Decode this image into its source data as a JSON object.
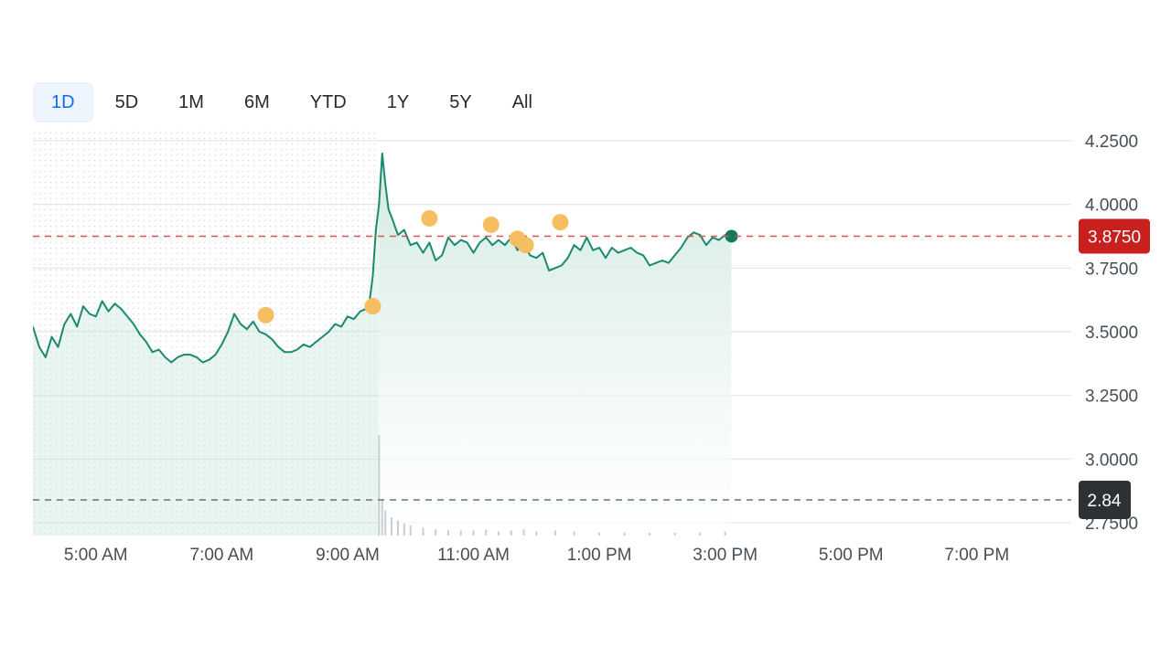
{
  "tabs": [
    {
      "label": "1D",
      "active": true
    },
    {
      "label": "5D",
      "active": false
    },
    {
      "label": "1M",
      "active": false
    },
    {
      "label": "6M",
      "active": false
    },
    {
      "label": "YTD",
      "active": false
    },
    {
      "label": "1Y",
      "active": false
    },
    {
      "label": "5Y",
      "active": false
    },
    {
      "label": "All",
      "active": false
    }
  ],
  "colors": {
    "line": "#1a8a6e",
    "area": "#dcefe9",
    "current_badge": "#c8201e",
    "prev_close_badge": "#2c3134",
    "event_marker": "#f5bf61",
    "grid": "#e2e4e6",
    "dotted_premarket": "#eceef0"
  },
  "chart_data": {
    "type": "line",
    "ylim": [
      2.7,
      4.3
    ],
    "yticks": [
      {
        "value": 2.75,
        "label": "2.7500"
      },
      {
        "value": 3.0,
        "label": "3.0000"
      },
      {
        "value": 3.25,
        "label": "3.2500"
      },
      {
        "value": 3.5,
        "label": "3.5000"
      },
      {
        "value": 3.75,
        "label": "3.7500"
      },
      {
        "value": 4.0,
        "label": "4.0000"
      },
      {
        "value": 4.25,
        "label": "4.2500"
      }
    ],
    "x_range_hours": [
      4,
      20.5
    ],
    "xticks": [
      {
        "value": 5,
        "label": "5:00 AM"
      },
      {
        "value": 7,
        "label": "7:00 AM"
      },
      {
        "value": 9,
        "label": "9:00 AM"
      },
      {
        "value": 11,
        "label": "11:00 AM"
      },
      {
        "value": 13,
        "label": "1:00 PM"
      },
      {
        "value": 15,
        "label": "3:00 PM"
      },
      {
        "value": 17,
        "label": "5:00 PM"
      },
      {
        "value": 19,
        "label": "7:00 PM"
      }
    ],
    "premarket_end_hour": 9.5,
    "current_price": {
      "value": 3.875,
      "label": "3.8750"
    },
    "previous_close": {
      "value": 2.84,
      "label": "2.84"
    },
    "series": [
      {
        "x": [
          4.0,
          4.1,
          4.2,
          4.3,
          4.4,
          4.5,
          4.6,
          4.7,
          4.8,
          4.9,
          5.0,
          5.1,
          5.2,
          5.3,
          5.4,
          5.5,
          5.6,
          5.7,
          5.8,
          5.9,
          6.0,
          6.1,
          6.2,
          6.3,
          6.4,
          6.5,
          6.6,
          6.7,
          6.8,
          6.9,
          7.0,
          7.1,
          7.2,
          7.3,
          7.4,
          7.5,
          7.6,
          7.7,
          7.8,
          7.9,
          8.0,
          8.1,
          8.2,
          8.3,
          8.4,
          8.5,
          8.6,
          8.7,
          8.8,
          8.9,
          9.0,
          9.1,
          9.2,
          9.3,
          9.35,
          9.4,
          9.45,
          9.5,
          9.55,
          9.6,
          9.65,
          9.7,
          9.8,
          9.9,
          10.0,
          10.1,
          10.2,
          10.3,
          10.4,
          10.5,
          10.6,
          10.7,
          10.8,
          10.9,
          11.0,
          11.1,
          11.2,
          11.3,
          11.4,
          11.5,
          11.6,
          11.7,
          11.8,
          11.9,
          12.0,
          12.1,
          12.2,
          12.3,
          12.4,
          12.5,
          12.6,
          12.7,
          12.8,
          12.9,
          13.0,
          13.1,
          13.2,
          13.3,
          13.4,
          13.5,
          13.6,
          13.7,
          13.8,
          13.9,
          14.0,
          14.1,
          14.2,
          14.3,
          14.4,
          14.5,
          14.6,
          14.7,
          14.8,
          14.9,
          15.0,
          15.1
        ],
        "y": [
          3.52,
          3.44,
          3.4,
          3.48,
          3.44,
          3.53,
          3.57,
          3.52,
          3.6,
          3.57,
          3.56,
          3.62,
          3.58,
          3.61,
          3.59,
          3.56,
          3.53,
          3.49,
          3.46,
          3.42,
          3.43,
          3.4,
          3.38,
          3.4,
          3.41,
          3.41,
          3.4,
          3.38,
          3.39,
          3.41,
          3.45,
          3.5,
          3.57,
          3.53,
          3.51,
          3.54,
          3.5,
          3.49,
          3.47,
          3.44,
          3.42,
          3.42,
          3.43,
          3.45,
          3.44,
          3.46,
          3.48,
          3.5,
          3.53,
          3.52,
          3.56,
          3.55,
          3.58,
          3.59,
          3.62,
          3.72,
          3.9,
          4.0,
          4.2,
          4.08,
          3.98,
          3.95,
          3.88,
          3.9,
          3.84,
          3.85,
          3.81,
          3.85,
          3.78,
          3.8,
          3.87,
          3.84,
          3.86,
          3.85,
          3.81,
          3.85,
          3.87,
          3.84,
          3.86,
          3.84,
          3.87,
          3.82,
          3.85,
          3.8,
          3.79,
          3.81,
          3.74,
          3.75,
          3.76,
          3.79,
          3.84,
          3.82,
          3.87,
          3.82,
          3.83,
          3.79,
          3.83,
          3.81,
          3.82,
          3.83,
          3.81,
          3.8,
          3.76,
          3.77,
          3.78,
          3.77,
          3.8,
          3.83,
          3.87,
          3.89,
          3.88,
          3.84,
          3.87,
          3.86,
          3.88,
          3.875
        ]
      }
    ],
    "events": [
      {
        "x": 7.7,
        "y": 3.565
      },
      {
        "x": 9.4,
        "y": 3.6
      },
      {
        "x": 10.3,
        "y": 3.945
      },
      {
        "x": 11.28,
        "y": 3.92
      },
      {
        "x": 11.7,
        "y": 3.865
      },
      {
        "x": 11.83,
        "y": 3.84
      },
      {
        "x": 12.38,
        "y": 3.93
      }
    ],
    "volume": {
      "x": [
        9.5,
        9.55,
        9.6,
        9.7,
        9.8,
        9.9,
        10.0,
        10.2,
        10.4,
        10.6,
        10.8,
        11.0,
        11.2,
        11.4,
        11.6,
        11.8,
        12.0,
        12.3,
        12.6,
        13.0,
        13.4,
        13.8,
        14.2,
        14.6,
        15.0
      ],
      "v": [
        1.0,
        0.35,
        0.25,
        0.18,
        0.15,
        0.12,
        0.1,
        0.08,
        0.06,
        0.05,
        0.05,
        0.05,
        0.06,
        0.04,
        0.05,
        0.06,
        0.04,
        0.05,
        0.04,
        0.03,
        0.03,
        0.03,
        0.03,
        0.03,
        0.04
      ]
    }
  }
}
